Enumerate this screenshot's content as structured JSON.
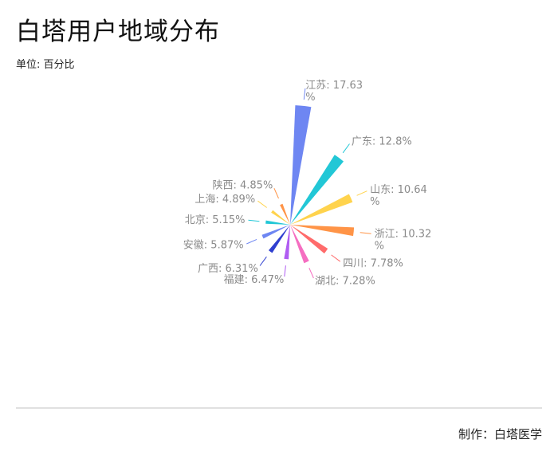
{
  "title": "白塔用户地域分布",
  "unit_label": "单位: 百分比",
  "credit": "制作：白塔医学",
  "chart_data": {
    "type": "pie",
    "variant": "rose-radius",
    "unit": "%",
    "title": "白塔用户地域分布",
    "slices": [
      {
        "name": "江苏",
        "value": 17.63,
        "label": "江苏: 17.63\n%",
        "color": "#6e86f2"
      },
      {
        "name": "广东",
        "value": 12.8,
        "label": "广东: 12.8%",
        "color": "#22c7d6"
      },
      {
        "name": "山东",
        "value": 10.64,
        "label": "山东: 10.64\n%",
        "color": "#ffd34d"
      },
      {
        "name": "浙江",
        "value": 10.32,
        "label": "浙江: 10.32\n%",
        "color": "#ff9447"
      },
      {
        "name": "四川",
        "value": 7.78,
        "label": "四川: 7.78%",
        "color": "#ff6b6b"
      },
      {
        "name": "湖北",
        "value": 7.28,
        "label": "湖北: 7.28%",
        "color": "#f56ec1"
      },
      {
        "name": "福建",
        "value": 6.47,
        "label": "福建: 6.47%",
        "color": "#b05cf2"
      },
      {
        "name": "广西",
        "value": 6.31,
        "label": "广西: 6.31%",
        "color": "#2f3fd0"
      },
      {
        "name": "安徽",
        "value": 5.87,
        "label": "安徽: 5.87%",
        "color": "#6e86f2"
      },
      {
        "name": "北京",
        "value": 5.15,
        "label": "北京: 5.15%",
        "color": "#22c7d6"
      },
      {
        "name": "上海",
        "value": 4.89,
        "label": "上海: 4.89%",
        "color": "#ffd34d"
      },
      {
        "name": "陕西",
        "value": 4.85,
        "label": "陕西: 4.85%",
        "color": "#ff9447"
      }
    ],
    "legend": "none"
  }
}
